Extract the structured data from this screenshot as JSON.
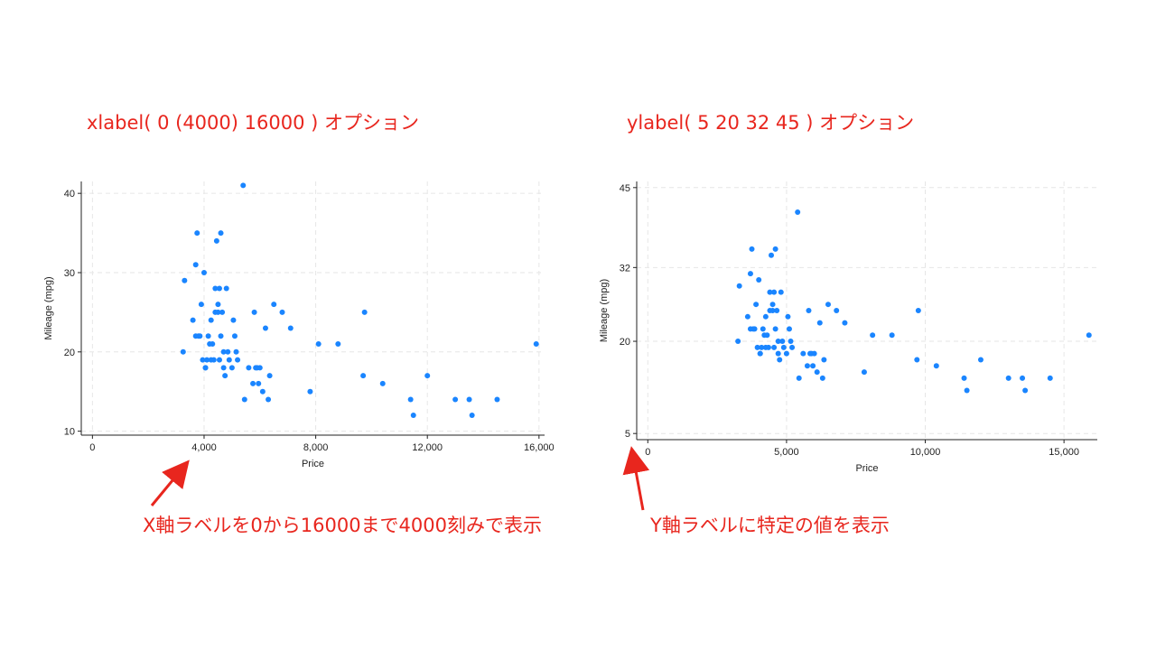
{
  "panels": [
    {
      "heading": "xlabel( 0 (4000) 16000 ) オプション",
      "annotation": "X軸ラベルを0から16000まで4000刻みで表示"
    },
    {
      "heading": "ylabel( 5 20 32 45 ) オプション",
      "annotation": "Y軸ラベルに特定の値を表示"
    }
  ],
  "colors": {
    "annotation": "#e8261e",
    "marker": "#1a85ff",
    "grid": "#e6e6e6",
    "axis": "#222222"
  },
  "chart_data": [
    {
      "type": "scatter",
      "xlabel": "Price",
      "ylabel": "Mileage (mpg)",
      "xlim": [
        -400,
        16200
      ],
      "ylim": [
        9.5,
        41.5
      ],
      "xticks": [
        0,
        4000,
        8000,
        12000,
        16000
      ],
      "xtick_labels": [
        "0",
        "4,000",
        "8,000",
        "12,000",
        "16,000"
      ],
      "yticks": [
        10,
        20,
        30,
        40
      ],
      "ytick_labels": [
        "10",
        "20",
        "30",
        "40"
      ],
      "grid": true,
      "series": [
        {
          "x": [
            3300,
            3250,
            3600,
            3700,
            3750,
            3800,
            3900,
            3950,
            4000,
            4050,
            4100,
            4150,
            4200,
            4250,
            4300,
            4350,
            4400,
            4450,
            4500,
            4550,
            4600,
            4650,
            4700,
            4750,
            4800,
            4850,
            4900,
            5000,
            5050,
            5100,
            5150,
            5200,
            5400,
            5450,
            5600,
            5750,
            5800,
            5850,
            5900,
            5950,
            6000,
            6100,
            6200,
            6300,
            6350,
            6500,
            6800,
            7100,
            7800,
            8100,
            8800,
            9700,
            9750,
            10400,
            11400,
            11500,
            12000,
            13000,
            13500,
            13600,
            14500,
            15900,
            3850,
            4050,
            4250,
            4500,
            4600,
            4700,
            3700,
            4400,
            4550
          ],
          "y": [
            29,
            20,
            24,
            31,
            35,
            22,
            26,
            19,
            30,
            18,
            19,
            22,
            21,
            24,
            21,
            19,
            28,
            34,
            26,
            28,
            35,
            25,
            18,
            17,
            28,
            20,
            19,
            18,
            24,
            22,
            20,
            19,
            41,
            14,
            18,
            16,
            25,
            18,
            18,
            16,
            18,
            15,
            23,
            14,
            17,
            26,
            25,
            23,
            15,
            21,
            21,
            17,
            25,
            16,
            14,
            12,
            17,
            14,
            14,
            12,
            14,
            21,
            22,
            18,
            19,
            25,
            22,
            20,
            22,
            25,
            19
          ]
        }
      ]
    },
    {
      "type": "scatter",
      "xlabel": "Price",
      "ylabel": "Mileage (mpg)",
      "xlim": [
        -400,
        16200
      ],
      "ylim": [
        4,
        46
      ],
      "xticks": [
        0,
        5000,
        10000,
        15000
      ],
      "xtick_labels": [
        "0",
        "5,000",
        "10,000",
        "15,000"
      ],
      "yticks": [
        5,
        20,
        32,
        45
      ],
      "ytick_labels": [
        "5",
        "20",
        "32",
        "45"
      ],
      "grid": true,
      "series": [
        {
          "x": [
            3300,
            3250,
            3600,
            3700,
            3750,
            3800,
            3900,
            3950,
            4000,
            4050,
            4100,
            4150,
            4200,
            4250,
            4300,
            4350,
            4400,
            4450,
            4500,
            4550,
            4600,
            4650,
            4700,
            4750,
            4800,
            4850,
            4900,
            5000,
            5050,
            5100,
            5150,
            5200,
            5400,
            5450,
            5600,
            5750,
            5800,
            5850,
            5900,
            5950,
            6000,
            6100,
            6200,
            6300,
            6350,
            6500,
            6800,
            7100,
            7800,
            8100,
            8800,
            9700,
            9750,
            10400,
            11400,
            11500,
            12000,
            13000,
            13500,
            13600,
            14500,
            15900,
            3850,
            4050,
            4250,
            4500,
            4600,
            4700,
            3700,
            4400,
            4550
          ],
          "y": [
            29,
            20,
            24,
            31,
            35,
            22,
            26,
            19,
            30,
            18,
            19,
            22,
            21,
            24,
            21,
            19,
            28,
            34,
            26,
            28,
            35,
            25,
            18,
            17,
            28,
            20,
            19,
            18,
            24,
            22,
            20,
            19,
            41,
            14,
            18,
            16,
            25,
            18,
            18,
            16,
            18,
            15,
            23,
            14,
            17,
            26,
            25,
            23,
            15,
            21,
            21,
            17,
            25,
            16,
            14,
            12,
            17,
            14,
            14,
            12,
            14,
            21,
            22,
            18,
            19,
            25,
            22,
            20,
            22,
            25,
            19
          ]
        }
      ]
    }
  ]
}
